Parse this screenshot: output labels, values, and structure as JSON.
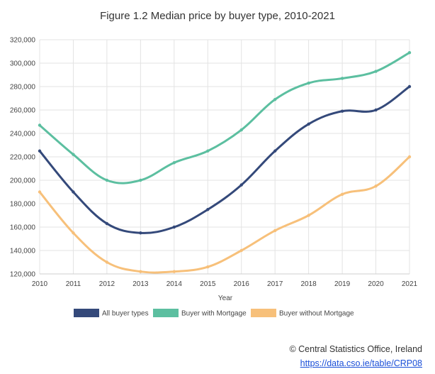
{
  "chart_data": {
    "type": "line",
    "title": "Figure 1.2 Median price by buyer type, 2010-2021",
    "xlabel": "Year",
    "ylabel": "",
    "categories": [
      "2010",
      "2011",
      "2012",
      "2013",
      "2014",
      "2015",
      "2016",
      "2017",
      "2018",
      "2019",
      "2020",
      "2021"
    ],
    "ylim": [
      120000,
      320000
    ],
    "yticks": [
      "120,000",
      "140,000",
      "160,000",
      "180,000",
      "200,000",
      "220,000",
      "240,000",
      "260,000",
      "280,000",
      "300,000",
      "320,000"
    ],
    "grid": true,
    "legend_position": "bottom",
    "series": [
      {
        "name": "All buyer types",
        "color": "#34497a",
        "values": [
          225000,
          190000,
          163000,
          155000,
          160000,
          175000,
          196000,
          225000,
          248000,
          259000,
          260000,
          280000
        ]
      },
      {
        "name": "Buyer with Mortgage",
        "color": "#5cbfa0",
        "values": [
          247000,
          222000,
          200000,
          200000,
          215000,
          225000,
          243000,
          269000,
          283000,
          287000,
          293000,
          309000
        ]
      },
      {
        "name": "Buyer without Mortgage",
        "color": "#f7c07a",
        "values": [
          190000,
          155000,
          130000,
          122000,
          122000,
          126000,
          140000,
          157000,
          170000,
          188000,
          195000,
          220000
        ]
      }
    ]
  },
  "source": {
    "text": "© Central Statistics Office, Ireland",
    "link": "https://data.cso.ie/table/CRP08"
  }
}
